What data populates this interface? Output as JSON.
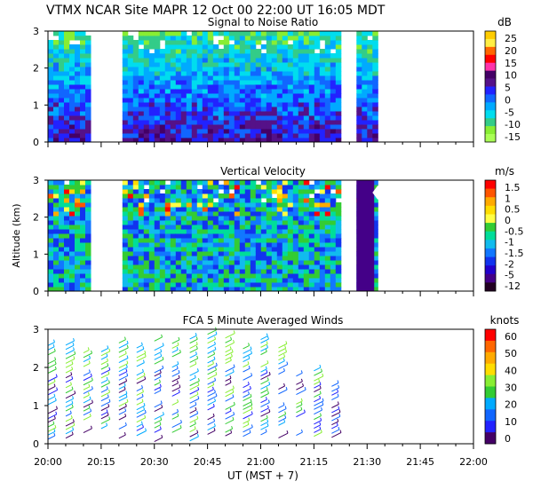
{
  "header": {
    "left": "VTMX  NCAR Site  MAPR 12 Oct 00  22:00 UT  16:05  MDT"
  },
  "chart_data": [
    {
      "type": "heatmap",
      "title": "Signal to Noise Ratio",
      "ylabel": "",
      "units": "dB",
      "ylim": [
        0,
        3
      ],
      "yticks": [
        "0",
        "1",
        "2",
        "3"
      ],
      "legend_labels": [
        "25",
        "20",
        "15",
        "10",
        "5",
        "0",
        "-5",
        "-10",
        "-15"
      ],
      "colors": [
        "#ffcc00",
        "#ffee44",
        "#ff6600",
        "#ff0000",
        "#ff33aa",
        "#440066",
        "#551188",
        "#2222ff",
        "#1166ff",
        "#00aaff",
        "#00ddee",
        "#33cc88",
        "#88ee33",
        "#aaff55"
      ],
      "data_time_ranges": [
        [
          "20:00",
          "20:12"
        ],
        [
          "20:21",
          "21:22"
        ],
        [
          "21:27",
          "21:32"
        ]
      ]
    },
    {
      "type": "heatmap",
      "title": "Vertical Velocity",
      "ylabel": "Altitude (km)",
      "units": "m/s",
      "ylim": [
        0,
        3
      ],
      "yticks": [
        "0",
        "1",
        "2",
        "3"
      ],
      "legend_labels": [
        "1.5",
        "1",
        "0.5",
        "0",
        "-0.5",
        "-1",
        "-1.5",
        "-2",
        "-5",
        "-12"
      ],
      "colors": [
        "#ff0000",
        "#ff5500",
        "#ffaa00",
        "#ffdd00",
        "#ffff44",
        "#33cc33",
        "#00dd99",
        "#11bbee",
        "#1177ff",
        "#1133ee",
        "#2200cc",
        "#440088",
        "#220022"
      ],
      "data_time_ranges": [
        [
          "20:00",
          "20:12"
        ],
        [
          "20:21",
          "21:22"
        ],
        [
          "21:27",
          "21:32"
        ]
      ]
    },
    {
      "type": "scatter",
      "title": "FCA 5 Minute Averaged Winds",
      "ylabel": "",
      "units": "knots",
      "ylim": [
        0,
        3
      ],
      "yticks": [
        "0",
        "1",
        "2",
        "3"
      ],
      "legend_labels": [
        "60",
        "50",
        "40",
        "30",
        "20",
        "10",
        "0"
      ],
      "colors": [
        "#ff0000",
        "#ff6600",
        "#ffaa00",
        "#ffdd00",
        "#88ee33",
        "#33cc33",
        "#00aaff",
        "#1166ff",
        "#2222ff",
        "#440066"
      ],
      "data_time_ranges": [
        [
          "20:00",
          "21:20"
        ]
      ]
    }
  ],
  "xaxis": {
    "xlim": [
      "20:00",
      "22:00"
    ],
    "ticks": [
      "20:00",
      "20:15",
      "20:30",
      "20:45",
      "21:00",
      "21:15",
      "21:30",
      "21:45",
      "22:00"
    ],
    "xlabel": "UT  (MST + 7)"
  }
}
